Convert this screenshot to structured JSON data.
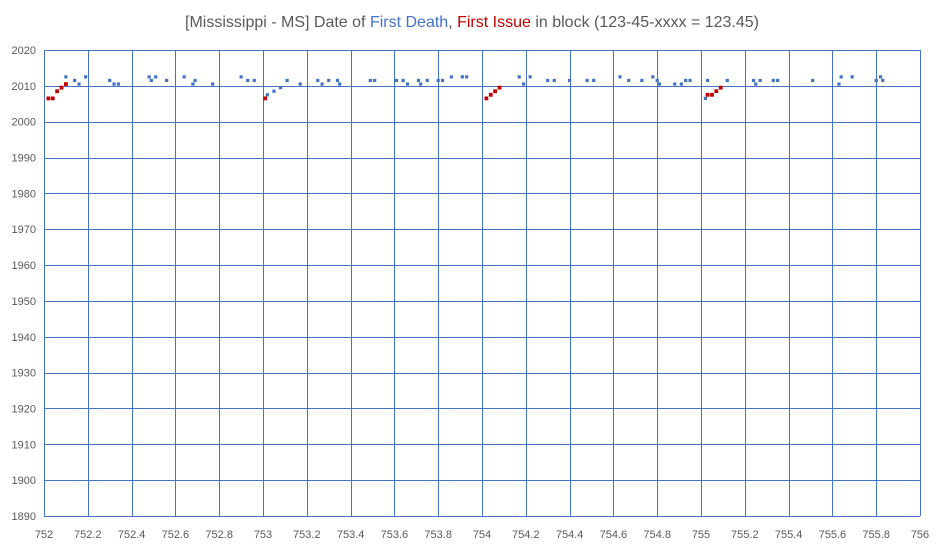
{
  "chart_data": {
    "type": "scatter",
    "title": {
      "prefix": "[Mississippi - MS] Date of ",
      "death_label": "First Death",
      "separator": ", ",
      "issue_label": "First Issue",
      "suffix": " in block (123-45-xxxx = 123.45)"
    },
    "xlim": [
      752,
      756
    ],
    "ylim": [
      1890,
      2020
    ],
    "x_ticks": [
      752,
      752.2,
      752.4,
      752.6,
      752.8,
      753,
      753.2,
      753.4,
      753.6,
      753.8,
      754,
      754.2,
      754.4,
      754.6,
      754.8,
      755,
      755.2,
      755.4,
      755.6,
      755.8,
      756
    ],
    "x_tick_labels": [
      "752",
      "752.2",
      "752.4",
      "752.6",
      "752.8",
      "753",
      "753.2",
      "753.4",
      "753.6",
      "753.8",
      "754",
      "754.2",
      "754.4",
      "754.6",
      "754.8",
      "755",
      "755.2",
      "755.4",
      "755.6",
      "755.8",
      "756"
    ],
    "y_ticks": [
      1890,
      1900,
      1910,
      1920,
      1930,
      1940,
      1950,
      1960,
      1970,
      1980,
      1990,
      2000,
      2010,
      2020
    ],
    "y_tick_labels": [
      "1890",
      "1900",
      "1910",
      "1920",
      "1930",
      "1940",
      "1950",
      "1960",
      "1970",
      "1980",
      "1990",
      "2000",
      "2010",
      "2020"
    ],
    "grid": true,
    "legend": "none",
    "series": [
      {
        "color": "#4472c4",
        "points": [
          [
            752.1,
            2012.5
          ],
          [
            752.14,
            2011.5
          ],
          [
            752.16,
            2010.5
          ],
          [
            752.19,
            2012.5
          ],
          [
            752.3,
            2011.5
          ],
          [
            752.32,
            2010.5
          ],
          [
            752.34,
            2010.5
          ],
          [
            752.48,
            2012.5
          ],
          [
            752.49,
            2011.5
          ],
          [
            752.51,
            2012.5
          ],
          [
            752.56,
            2011.5
          ],
          [
            752.64,
            2012.5
          ],
          [
            752.68,
            2010.5
          ],
          [
            752.69,
            2011.5
          ],
          [
            752.77,
            2010.5
          ],
          [
            752.9,
            2012.5
          ],
          [
            752.93,
            2011.5
          ],
          [
            752.96,
            2011.5
          ],
          [
            753.02,
            2007.5
          ],
          [
            753.05,
            2008.5
          ],
          [
            753.08,
            2009.5
          ],
          [
            753.11,
            2011.5
          ],
          [
            753.17,
            2010.5
          ],
          [
            753.25,
            2011.5
          ],
          [
            753.27,
            2010.5
          ],
          [
            753.3,
            2011.5
          ],
          [
            753.34,
            2011.5
          ],
          [
            753.35,
            2010.5
          ],
          [
            753.49,
            2011.5
          ],
          [
            753.51,
            2011.5
          ],
          [
            753.61,
            2011.5
          ],
          [
            753.64,
            2011.5
          ],
          [
            753.66,
            2010.5
          ],
          [
            753.71,
            2011.5
          ],
          [
            753.72,
            2010.5
          ],
          [
            753.75,
            2011.5
          ],
          [
            753.8,
            2011.5
          ],
          [
            753.82,
            2011.5
          ],
          [
            753.86,
            2012.5
          ],
          [
            753.91,
            2012.5
          ],
          [
            753.93,
            2012.5
          ],
          [
            754.17,
            2012.5
          ],
          [
            754.19,
            2010.5
          ],
          [
            754.22,
            2012.5
          ],
          [
            754.3,
            2011.5
          ],
          [
            754.33,
            2011.5
          ],
          [
            754.4,
            2011.5
          ],
          [
            754.48,
            2011.5
          ],
          [
            754.51,
            2011.5
          ],
          [
            754.63,
            2012.5
          ],
          [
            754.67,
            2011.5
          ],
          [
            754.73,
            2011.5
          ],
          [
            754.78,
            2012.5
          ],
          [
            754.8,
            2011.5
          ],
          [
            754.81,
            2010.5
          ],
          [
            754.88,
            2010.5
          ],
          [
            754.91,
            2010.5
          ],
          [
            754.93,
            2011.5
          ],
          [
            754.95,
            2011.5
          ],
          [
            755.02,
            2006.5
          ],
          [
            755.03,
            2011.5
          ],
          [
            755.12,
            2011.5
          ],
          [
            755.24,
            2011.5
          ],
          [
            755.25,
            2010.5
          ],
          [
            755.27,
            2011.5
          ],
          [
            755.33,
            2011.5
          ],
          [
            755.35,
            2011.5
          ],
          [
            755.51,
            2011.5
          ],
          [
            755.63,
            2010.5
          ],
          [
            755.64,
            2012.5
          ],
          [
            755.69,
            2012.5
          ],
          [
            755.8,
            2011.5
          ],
          [
            755.82,
            2012.5
          ],
          [
            755.83,
            2011.5
          ]
        ]
      },
      {
        "color": "#c00000",
        "points": [
          [
            752.02,
            2006.5
          ],
          [
            752.04,
            2006.5
          ],
          [
            752.06,
            2008.5
          ],
          [
            752.08,
            2009.5
          ],
          [
            752.1,
            2010.5
          ],
          [
            753.01,
            2006.5
          ],
          [
            754.02,
            2006.5
          ],
          [
            754.04,
            2007.5
          ],
          [
            754.06,
            2008.5
          ],
          [
            754.08,
            2009.5
          ],
          [
            755.03,
            2007.5
          ],
          [
            755.05,
            2007.5
          ],
          [
            755.07,
            2008.5
          ],
          [
            755.09,
            2009.5
          ]
        ]
      }
    ]
  },
  "colors": {
    "death_label": "#4472c4",
    "issue_label": "#c00000",
    "grid": "#4472c4",
    "text": "#595959"
  }
}
